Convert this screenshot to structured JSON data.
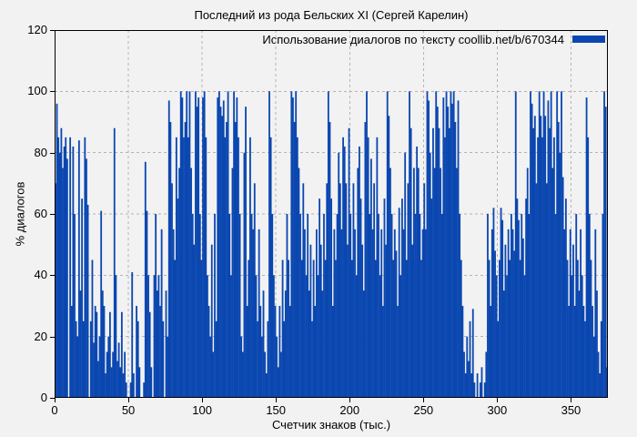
{
  "window": {
    "background": "#f2f2f2",
    "border_color": "#000000",
    "grid_color": "#b4b4b4",
    "text_color": "#000000"
  },
  "chart_data": {
    "type": "bar",
    "title": "Последний из рода Бельских XI (Сергей Карелин)",
    "legend": {
      "label": "Использование диалогов по тексту coollib.net/b/670344",
      "position": "top-right",
      "swatch_color": "#0b47b0"
    },
    "xlabel": "Счетчик знаков (тыс.)",
    "ylabel": "% диалогов",
    "xlim": [
      0,
      375
    ],
    "ylim": [
      0,
      120
    ],
    "x_ticks": [
      0,
      50,
      100,
      150,
      200,
      250,
      300,
      350
    ],
    "y_ticks": [
      0,
      20,
      40,
      60,
      80,
      100,
      120
    ],
    "grid": true,
    "bar_color": "#0b47b0",
    "x_start": 0,
    "x_step": 1,
    "values": [
      70,
      96,
      85,
      80,
      88,
      75,
      82,
      85,
      78,
      0,
      85,
      30,
      82,
      60,
      25,
      20,
      84,
      35,
      65,
      25,
      85,
      78,
      63,
      0,
      25,
      45,
      18,
      30,
      28,
      12,
      20,
      61,
      35,
      30,
      8,
      15,
      20,
      28,
      10,
      15,
      88,
      40,
      12,
      18,
      10,
      28,
      8,
      15,
      5,
      0,
      0,
      5,
      41,
      8,
      0,
      30,
      25,
      10,
      0,
      0,
      5,
      77,
      61,
      40,
      28,
      10,
      0,
      40,
      60,
      35,
      40,
      30,
      55,
      25,
      0,
      35,
      20,
      97,
      90,
      70,
      55,
      45,
      85,
      65,
      75,
      100,
      98,
      85,
      90,
      100,
      85,
      100,
      75,
      60,
      50,
      100,
      95,
      98,
      60,
      45,
      98,
      100,
      85,
      40,
      30,
      20,
      50,
      15,
      60,
      25,
      98,
      100,
      95,
      92,
      97,
      85,
      90,
      100,
      60,
      40,
      75,
      100,
      90,
      98,
      85,
      60,
      20,
      15,
      80,
      95,
      30,
      45,
      85,
      60,
      55,
      70,
      40,
      25,
      55,
      30,
      20,
      35,
      15,
      8,
      25,
      100,
      85,
      60,
      40,
      30,
      20,
      10,
      30,
      15,
      45,
      25,
      35,
      60,
      45,
      30,
      100,
      98,
      90,
      100,
      85,
      75,
      60,
      45,
      70,
      55,
      40,
      60,
      35,
      50,
      25,
      45,
      30,
      55,
      40,
      65,
      50,
      35,
      60,
      45,
      70,
      100,
      90,
      65,
      30,
      55,
      45,
      60,
      80,
      70,
      55,
      85,
      82,
      70,
      50,
      88,
      60,
      45,
      70,
      55,
      40,
      75,
      82,
      65,
      50,
      35,
      90,
      100,
      85,
      60,
      78,
      55,
      70,
      45,
      85,
      60,
      40,
      55,
      30,
      65,
      50,
      100,
      92,
      75,
      60,
      45,
      55,
      48,
      30,
      62,
      40,
      65,
      55,
      80,
      45,
      70,
      100,
      88,
      50,
      75,
      60,
      82,
      75,
      60,
      45,
      55,
      70,
      55,
      100,
      97,
      80,
      65,
      88,
      75,
      100,
      95,
      88,
      75,
      60,
      98,
      85,
      100,
      95,
      88,
      100,
      96,
      100,
      90,
      75,
      97,
      60,
      45,
      30,
      15,
      8,
      20,
      12,
      25,
      8,
      29,
      5,
      0,
      8,
      0,
      5,
      10,
      0,
      5,
      15,
      60,
      45,
      30,
      55,
      62,
      48,
      40,
      25,
      45,
      62,
      58,
      35,
      50,
      40,
      55,
      45,
      60,
      55,
      48,
      100,
      65,
      58,
      45,
      60,
      52,
      40,
      65,
      75,
      60,
      100,
      96,
      88,
      92,
      70,
      85,
      100,
      92,
      85,
      100,
      92,
      70,
      97,
      88,
      100,
      75,
      85,
      60,
      100,
      90,
      80,
      100,
      72,
      55,
      65,
      45,
      30,
      55,
      40,
      50,
      30,
      60,
      45,
      35,
      55,
      40,
      30,
      25,
      98,
      85,
      60,
      45,
      30,
      20,
      55,
      35,
      15,
      8,
      25,
      60,
      100,
      95,
      10
    ]
  }
}
